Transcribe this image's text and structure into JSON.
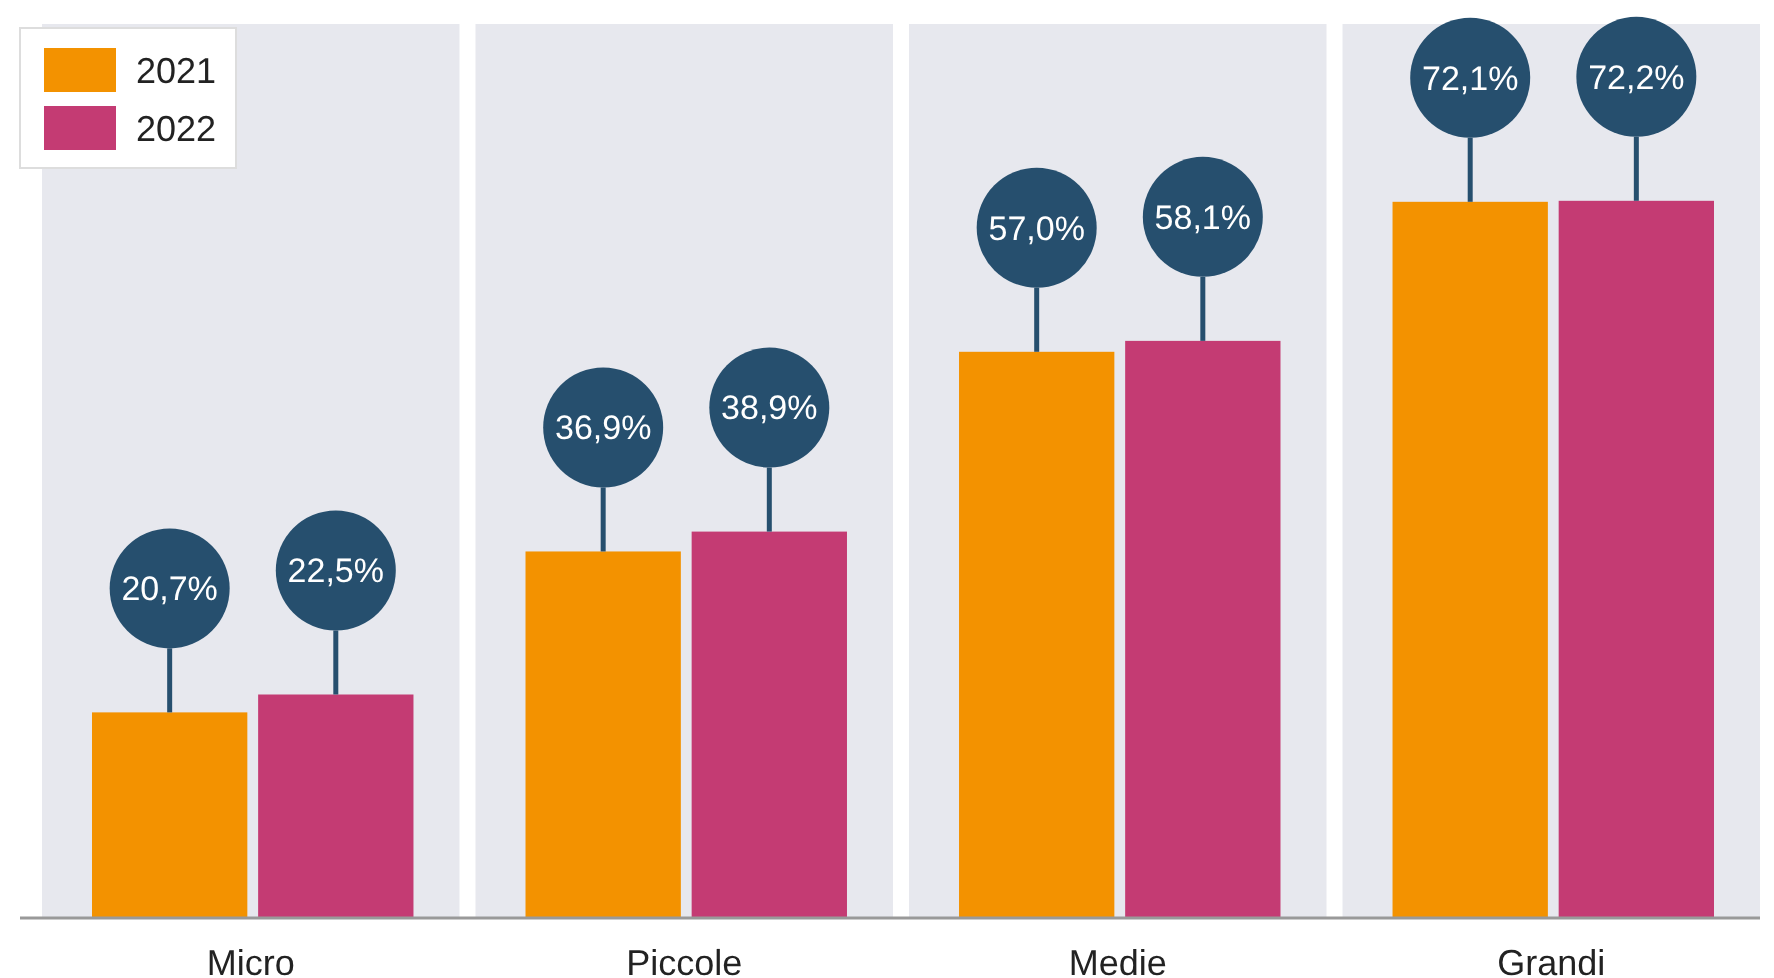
{
  "chart_data": {
    "type": "bar",
    "categories": [
      "Micro",
      "Piccole",
      "Medie",
      "Grandi"
    ],
    "series": [
      {
        "name": "2021",
        "color": "#f39200",
        "values": [
          20.7,
          36.9,
          57.0,
          72.1
        ],
        "value_labels": [
          "20,7%",
          "36,9%",
          "57,0%",
          "72,1%"
        ]
      },
      {
        "name": "2022",
        "color": "#c43b73",
        "values": [
          22.5,
          38.9,
          58.1,
          72.2
        ],
        "value_labels": [
          "22,5%",
          "38,9%",
          "58,1%",
          "72,2%"
        ]
      }
    ],
    "ylim": [
      0,
      90
    ],
    "tick_labels": "x",
    "legend": "top left",
    "grid": false
  }
}
